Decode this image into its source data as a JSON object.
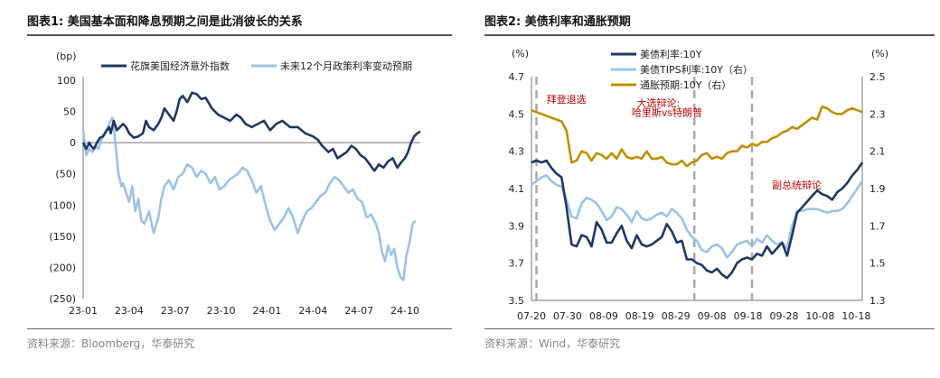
{
  "left": {
    "title": "图表1:  美国基本面和降息预期之间是此消彼长的关系",
    "source": "资料来源：Bloomberg，华泰研究",
    "chart_data": {
      "type": "line",
      "yunit": "(bp)",
      "ylim": [
        -250,
        100
      ],
      "yticks": [
        100,
        50,
        0,
        -50,
        -100,
        -150,
        -200,
        -250
      ],
      "ytick_labels": [
        "100",
        "50",
        "0",
        "(50)",
        "(100)",
        "(150)",
        "(200)",
        "(250)"
      ],
      "xlim": [
        0,
        22
      ],
      "xticks": [
        0,
        3,
        6,
        9,
        12,
        15,
        18,
        21
      ],
      "xtick_labels": [
        "23-01",
        "23-04",
        "23-07",
        "23-10",
        "24-01",
        "24-04",
        "24-07",
        "24-10"
      ],
      "legend_position": "top",
      "series": [
        {
          "name": "花旗美国经济意外指数",
          "color": "#1f3864",
          "x": [
            0,
            0.2,
            0.4,
            0.5,
            0.7,
            0.9,
            1.1,
            1.3,
            1.5,
            1.7,
            1.8,
            2.0,
            2.2,
            2.4,
            2.6,
            2.8,
            3.0,
            3.3,
            3.6,
            3.9,
            4.1,
            4.3,
            4.6,
            4.9,
            5.1,
            5.3,
            5.6,
            5.9,
            6.1,
            6.3,
            6.5,
            6.8,
            7.1,
            7.4,
            7.7,
            8.0,
            8.4,
            8.8,
            9.2,
            9.6,
            10.0,
            10.3,
            10.6,
            11.0,
            11.4,
            11.8,
            12.2,
            12.6,
            13.0,
            13.5,
            14.0,
            14.5,
            15.0,
            15.3,
            15.6,
            16.0,
            16.3,
            16.6,
            16.9,
            17.2,
            17.5,
            17.8,
            18.1,
            18.4,
            18.7,
            19.0,
            19.3,
            19.6,
            19.9,
            20.2,
            20.5,
            20.8,
            21.0,
            21.2,
            21.4,
            21.6,
            21.8,
            22.0
          ],
          "values": [
            0,
            -10,
            0,
            -5,
            -10,
            0,
            8,
            10,
            18,
            25,
            15,
            35,
            20,
            25,
            30,
            25,
            15,
            8,
            10,
            15,
            35,
            25,
            20,
            30,
            40,
            55,
            45,
            35,
            50,
            70,
            75,
            65,
            80,
            78,
            70,
            72,
            55,
            45,
            40,
            35,
            45,
            40,
            30,
            25,
            30,
            35,
            20,
            30,
            35,
            25,
            25,
            15,
            10,
            5,
            -5,
            -15,
            -10,
            -25,
            -20,
            -15,
            -5,
            -10,
            -20,
            -25,
            -35,
            -45,
            -35,
            -40,
            -30,
            -25,
            -40,
            -30,
            -25,
            -15,
            0,
            10,
            15,
            18
          ]
        },
        {
          "name": "未来12个月政策利率变动预期",
          "color": "#9dc3e6",
          "x": [
            0,
            0.2,
            0.4,
            0.6,
            0.8,
            1.0,
            1.2,
            1.4,
            1.6,
            1.8,
            1.9,
            2.0,
            2.1,
            2.3,
            2.5,
            2.6,
            2.8,
            3.0,
            3.2,
            3.4,
            3.6,
            3.8,
            4.0,
            4.3,
            4.6,
            4.9,
            5.1,
            5.3,
            5.6,
            5.9,
            6.2,
            6.5,
            6.8,
            7.1,
            7.4,
            7.7,
            8.0,
            8.3,
            8.6,
            8.9,
            9.2,
            9.5,
            9.8,
            10.1,
            10.4,
            10.7,
            11.0,
            11.3,
            11.6,
            11.9,
            12.2,
            12.5,
            12.8,
            13.1,
            13.4,
            13.7,
            14.0,
            14.3,
            14.6,
            14.9,
            15.2,
            15.5,
            15.8,
            16.1,
            16.4,
            16.7,
            17.0,
            17.3,
            17.6,
            17.9,
            18.2,
            18.5,
            18.8,
            19.1,
            19.3,
            19.5,
            19.7,
            19.9,
            20.1,
            20.3,
            20.5,
            20.7,
            20.9,
            21.1,
            21.3,
            21.5,
            21.7
          ],
          "values": [
            20,
            -20,
            -10,
            -15,
            -5,
            -10,
            5,
            15,
            25,
            35,
            40,
            28,
            0,
            -50,
            -70,
            -65,
            -80,
            -95,
            -70,
            -110,
            -90,
            -125,
            -130,
            -110,
            -145,
            -120,
            -90,
            -70,
            -60,
            -75,
            -55,
            -50,
            -35,
            -40,
            -55,
            -45,
            -50,
            -65,
            -55,
            -75,
            -70,
            -60,
            -55,
            -50,
            -40,
            -45,
            -60,
            -80,
            -70,
            -100,
            -125,
            -140,
            -130,
            -120,
            -105,
            -120,
            -145,
            -125,
            -110,
            -105,
            -95,
            -85,
            -80,
            -65,
            -55,
            -60,
            -70,
            -80,
            -75,
            -90,
            -95,
            -120,
            -115,
            -130,
            -145,
            -175,
            -190,
            -165,
            -180,
            -170,
            -200,
            -215,
            -220,
            -180,
            -160,
            -130,
            -125
          ]
        }
      ]
    }
  },
  "right": {
    "title": "图表2:  美债利率和通胀预期",
    "source": "资料来源：Wind，华泰研究",
    "chart_data": {
      "type": "line",
      "yunit_left": "(%)",
      "yunit_right": "(%)",
      "ylim_left": [
        3.5,
        4.7
      ],
      "ylim_right": [
        1.3,
        2.5
      ],
      "yticks_left": [
        3.5,
        3.7,
        3.9,
        4.1,
        4.3,
        4.5,
        4.7
      ],
      "ytick_labels_left": [
        "3.5",
        "3.7",
        "3.9",
        "4.1",
        "4.3",
        "4.5",
        "4.7"
      ],
      "yticks_right": [
        1.3,
        1.5,
        1.7,
        1.9,
        2.1,
        2.3,
        2.5
      ],
      "ytick_labels_right": [
        "1.3",
        "1.5",
        "1.7",
        "1.9",
        "2.1",
        "2.3",
        "2.5"
      ],
      "xlim": [
        0,
        66
      ],
      "xticks": [
        0,
        10,
        20,
        30,
        40,
        50,
        60,
        70,
        80,
        90
      ],
      "xtick_labels": [
        "07-20",
        "07-30",
        "08-09",
        "08-19",
        "08-29",
        "09-08",
        "09-18",
        "09-28",
        "10-08",
        "10-18"
      ],
      "xtick_scale": 0.72,
      "legend_position": "top-left",
      "vlines": [
        1,
        32.5,
        44
      ],
      "annotations": [
        {
          "text": "拜登退选",
          "x": 3,
          "y": 4.56
        },
        {
          "text": "大选辩论:",
          "x": 21,
          "y": 4.54
        },
        {
          "text": "哈里斯vs特朗普",
          "x": 20,
          "y": 4.49
        },
        {
          "text": "副总统辩论",
          "x": 48,
          "y": 4.1
        }
      ],
      "series": [
        {
          "name": "美债利率:10Y",
          "color": "#1f3864",
          "axis": "left",
          "x": [
            0,
            1,
            2,
            3,
            4,
            5,
            6,
            7,
            8,
            9,
            10,
            11,
            12,
            13,
            14,
            15,
            16,
            17,
            18,
            19,
            20,
            21,
            22,
            23,
            24,
            25,
            26,
            27,
            28,
            29,
            30,
            31,
            32,
            33,
            34,
            35,
            36,
            37,
            38,
            39,
            40,
            41,
            42,
            43,
            44,
            45,
            46,
            47,
            48,
            49,
            50,
            51,
            52,
            53,
            54,
            55,
            56,
            57,
            58,
            59,
            60,
            61,
            62,
            63,
            64,
            65,
            66
          ],
          "values": [
            4.24,
            4.25,
            4.24,
            4.25,
            4.21,
            4.18,
            4.16,
            4.0,
            3.8,
            3.79,
            3.85,
            3.84,
            3.79,
            3.92,
            3.88,
            3.81,
            3.81,
            3.86,
            3.9,
            3.82,
            3.78,
            3.85,
            3.8,
            3.79,
            3.8,
            3.82,
            3.84,
            3.91,
            3.87,
            3.81,
            3.82,
            3.72,
            3.72,
            3.7,
            3.69,
            3.66,
            3.65,
            3.67,
            3.64,
            3.62,
            3.65,
            3.7,
            3.72,
            3.73,
            3.72,
            3.75,
            3.74,
            3.79,
            3.75,
            3.78,
            3.81,
            3.74,
            3.85,
            3.97,
            4.0,
            4.03,
            4.06,
            4.09,
            4.07,
            4.06,
            4.04,
            4.08,
            4.1,
            4.13,
            4.17,
            4.2,
            4.24
          ]
        },
        {
          "name": "美债TIPS利率:10Y（右）",
          "color": "#9dc3e6",
          "axis": "right",
          "x": [
            0,
            1,
            2,
            3,
            4,
            5,
            6,
            7,
            8,
            9,
            10,
            11,
            12,
            13,
            14,
            15,
            16,
            17,
            18,
            19,
            20,
            21,
            22,
            23,
            24,
            25,
            26,
            27,
            28,
            29,
            30,
            31,
            32,
            33,
            34,
            35,
            36,
            37,
            38,
            39,
            40,
            41,
            42,
            43,
            44,
            45,
            46,
            47,
            48,
            49,
            50,
            51,
            52,
            53,
            54,
            55,
            56,
            57,
            58,
            59,
            60,
            61,
            62,
            63,
            64,
            65,
            66
          ],
          "values": [
            1.92,
            1.94,
            1.96,
            1.97,
            1.94,
            1.92,
            1.91,
            1.84,
            1.75,
            1.74,
            1.82,
            1.85,
            1.84,
            1.82,
            1.78,
            1.73,
            1.75,
            1.8,
            1.79,
            1.76,
            1.72,
            1.78,
            1.74,
            1.73,
            1.74,
            1.76,
            1.77,
            1.75,
            1.79,
            1.77,
            1.74,
            1.68,
            1.64,
            1.62,
            1.57,
            1.56,
            1.59,
            1.6,
            1.58,
            1.53,
            1.56,
            1.6,
            1.61,
            1.62,
            1.59,
            1.63,
            1.61,
            1.65,
            1.62,
            1.6,
            1.61,
            1.58,
            1.7,
            1.78,
            1.78,
            1.79,
            1.79,
            1.79,
            1.78,
            1.77,
            1.78,
            1.78,
            1.79,
            1.82,
            1.86,
            1.9,
            1.94
          ]
        },
        {
          "name": "通胀预期:10Y（右）",
          "color": "#bf9000",
          "axis": "right",
          "x": [
            0,
            1,
            2,
            3,
            4,
            5,
            6,
            7,
            8,
            9,
            10,
            11,
            12,
            13,
            14,
            15,
            16,
            17,
            18,
            19,
            20,
            21,
            22,
            23,
            24,
            25,
            26,
            27,
            28,
            29,
            30,
            31,
            32,
            33,
            34,
            35,
            36,
            37,
            38,
            39,
            40,
            41,
            42,
            43,
            44,
            45,
            46,
            47,
            48,
            49,
            50,
            51,
            52,
            53,
            54,
            55,
            56,
            57,
            58,
            59,
            60,
            61,
            62,
            63,
            64,
            65,
            66
          ],
          "values": [
            2.32,
            2.31,
            2.3,
            2.29,
            2.28,
            2.27,
            2.26,
            2.21,
            2.04,
            2.05,
            2.1,
            2.09,
            2.05,
            2.09,
            2.08,
            2.06,
            2.09,
            2.06,
            2.11,
            2.07,
            2.06,
            2.07,
            2.06,
            2.1,
            2.06,
            2.06,
            2.07,
            2.04,
            2.03,
            2.03,
            2.05,
            2.02,
            2.04,
            2.05,
            2.08,
            2.09,
            2.06,
            2.07,
            2.06,
            2.09,
            2.1,
            2.1,
            2.13,
            2.12,
            2.14,
            2.13,
            2.15,
            2.15,
            2.17,
            2.18,
            2.2,
            2.21,
            2.23,
            2.22,
            2.24,
            2.26,
            2.28,
            2.27,
            2.34,
            2.33,
            2.31,
            2.3,
            2.3,
            2.32,
            2.33,
            2.32,
            2.31
          ]
        }
      ]
    }
  }
}
